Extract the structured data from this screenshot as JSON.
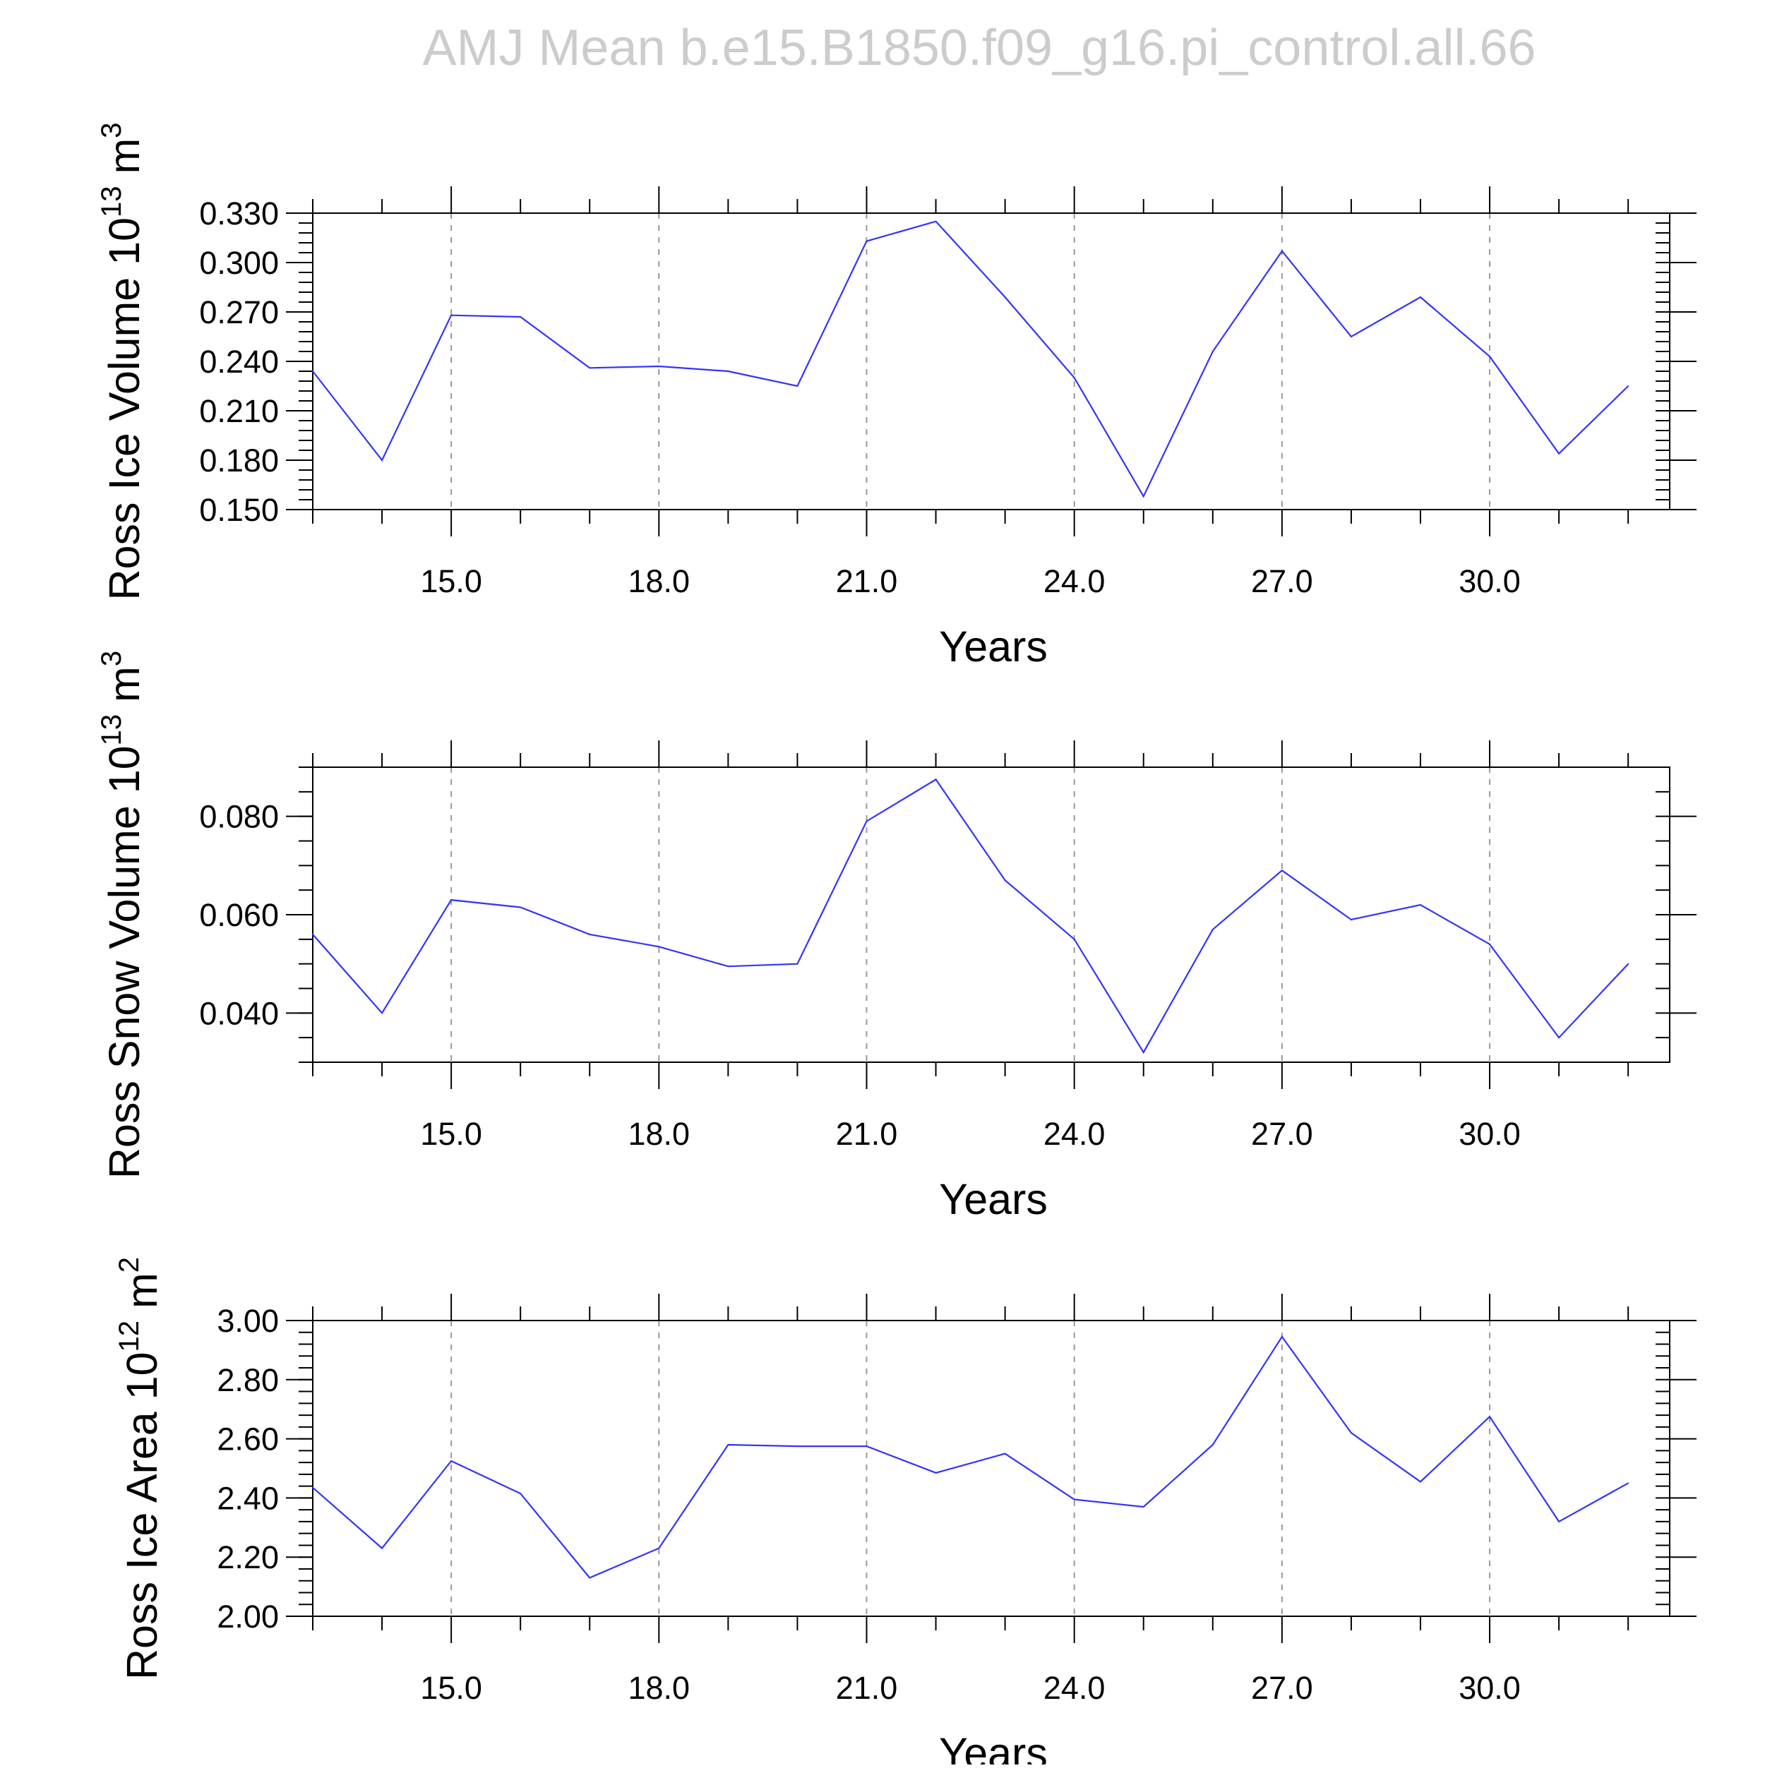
{
  "title": "AMJ Mean  b.e15.B1850.f09_g16.pi_control.all.66",
  "colors": {
    "line": "#3333ff",
    "frame": "#000000",
    "grid": "#999999",
    "title": "#cccccc"
  },
  "chart_data": [
    {
      "type": "line",
      "ylabel": {
        "text": "Ross Ice Volume 10",
        "exp": "13",
        "unit": " m",
        "unit_exp": "3"
      },
      "xlabel": "Years",
      "xlim": [
        13,
        32.6
      ],
      "ylim": [
        0.15,
        0.33
      ],
      "grid": "vertical dashed at major x ticks",
      "x_major_ticks": [
        15,
        18,
        21,
        24,
        27,
        30
      ],
      "x_tick_labels": [
        "15.0",
        "18.0",
        "21.0",
        "24.0",
        "27.0",
        "30.0"
      ],
      "y_major_ticks": [
        0.15,
        0.18,
        0.21,
        0.24,
        0.27,
        0.3,
        0.33
      ],
      "y_tick_labels": [
        "0.150",
        "0.180",
        "0.210",
        "0.240",
        "0.270",
        "0.300",
        "0.330"
      ],
      "y_minor_step": 0.006,
      "x": [
        13,
        14,
        15,
        16,
        17,
        18,
        19,
        20,
        21,
        22,
        23,
        24,
        25,
        26,
        27,
        28,
        29,
        30,
        31,
        32
      ],
      "y": [
        0.234,
        0.18,
        0.268,
        0.267,
        0.236,
        0.237,
        0.234,
        0.225,
        0.313,
        0.325,
        0.279,
        0.23,
        0.158,
        0.246,
        0.307,
        0.255,
        0.279,
        0.243,
        0.184,
        0.225
      ]
    },
    {
      "type": "line",
      "ylabel": {
        "text": "Ross Snow Volume 10",
        "exp": "13",
        "unit": " m",
        "unit_exp": "3"
      },
      "xlabel": "Years",
      "xlim": [
        13,
        32.6
      ],
      "ylim": [
        0.03,
        0.09
      ],
      "grid": "vertical dashed at major x ticks",
      "x_major_ticks": [
        15,
        18,
        21,
        24,
        27,
        30
      ],
      "x_tick_labels": [
        "15.0",
        "18.0",
        "21.0",
        "24.0",
        "27.0",
        "30.0"
      ],
      "y_major_ticks": [
        0.04,
        0.06,
        0.08
      ],
      "y_tick_labels": [
        "0.040",
        "0.060",
        "0.080"
      ],
      "y_minor_step": 0.005,
      "x": [
        13,
        14,
        15,
        16,
        17,
        18,
        19,
        20,
        21,
        22,
        23,
        24,
        25,
        26,
        27,
        28,
        29,
        30,
        31,
        32
      ],
      "y": [
        0.056,
        0.04,
        0.063,
        0.0615,
        0.056,
        0.0535,
        0.0495,
        0.05,
        0.079,
        0.0875,
        0.067,
        0.055,
        0.032,
        0.057,
        0.069,
        0.059,
        0.062,
        0.054,
        0.035,
        0.05
      ]
    },
    {
      "type": "line",
      "ylabel": {
        "text": "Ross Ice Area 10",
        "exp": "12",
        "unit": " m",
        "unit_exp": "2"
      },
      "xlabel": "Years",
      "xlim": [
        13,
        32.6
      ],
      "ylim": [
        2.0,
        3.0
      ],
      "grid": "vertical dashed at major x ticks",
      "x_major_ticks": [
        15,
        18,
        21,
        24,
        27,
        30
      ],
      "x_tick_labels": [
        "15.0",
        "18.0",
        "21.0",
        "24.0",
        "27.0",
        "30.0"
      ],
      "y_major_ticks": [
        2.0,
        2.2,
        2.4,
        2.6,
        2.8,
        3.0
      ],
      "y_tick_labels": [
        "2.00",
        "2.20",
        "2.40",
        "2.60",
        "2.80",
        "3.00"
      ],
      "y_minor_step": 0.04,
      "x": [
        13,
        14,
        15,
        16,
        17,
        18,
        19,
        20,
        21,
        22,
        23,
        24,
        25,
        26,
        27,
        28,
        29,
        30,
        31,
        32
      ],
      "y": [
        2.435,
        2.23,
        2.525,
        2.415,
        2.13,
        2.23,
        2.58,
        2.575,
        2.575,
        2.485,
        2.55,
        2.395,
        2.37,
        2.58,
        2.945,
        2.62,
        2.455,
        2.675,
        2.32,
        2.45
      ]
    }
  ]
}
